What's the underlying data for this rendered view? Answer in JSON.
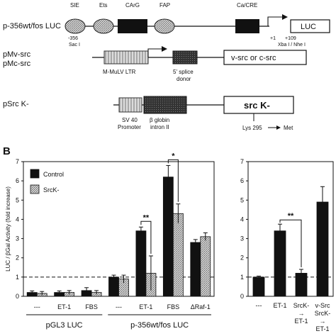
{
  "panel_a": {
    "construct1": {
      "name": "p-356wt/fos LUC",
      "elements": [
        "SIE",
        "Ets",
        "CArG",
        "FAP",
        "Ca/CRE"
      ],
      "pos_left": "-356",
      "site_left": "Sac I",
      "pos_plus1": "+1",
      "pos_plus109": "+109",
      "site_right": "Xba I / Nhe I",
      "reporter": "LUC"
    },
    "construct2": {
      "name_line1": "pMv-src",
      "name_line2": "pMc-src",
      "ltr_label": "M-MuLV LTR",
      "splice_line1": "5' splice",
      "splice_line2": "donor",
      "product": "v-src or c-src"
    },
    "construct3": {
      "name": "pSrc K-",
      "promoter_line1": "SV 40",
      "promoter_line2": "Promoter",
      "intron_label": "β globin",
      "intron_line2": "intron II",
      "product": "src K-",
      "mutation_from": "Lys 295",
      "mutation_to": "Met"
    }
  },
  "panel_b_label": "B",
  "chart_data": [
    {
      "type": "bar",
      "ylabel": "LUC / βGal Activity (fold increase)",
      "ylim": [
        0,
        7
      ],
      "yticks": [
        0,
        1,
        2,
        3,
        4,
        5,
        6,
        7
      ],
      "reference_line": 1,
      "legend": [
        "Control",
        "SrcK-"
      ],
      "legend_placement": "top-left",
      "categories": [
        "---",
        "ET-1",
        "FBS",
        "---",
        "ET-1",
        "FBS",
        "ΔRaf-1"
      ],
      "groups": [
        {
          "label": "pGL3 LUC",
          "category_count": 3
        },
        {
          "label": "p-356wt/fos LUC",
          "category_count": 4
        }
      ],
      "series": [
        {
          "name": "Control",
          "color": "#111111",
          "values": [
            0.2,
            0.2,
            0.3,
            1.0,
            3.4,
            6.2,
            2.8
          ],
          "errors": [
            0.08,
            0.08,
            0.15,
            0.1,
            0.2,
            0.6,
            0.15
          ]
        },
        {
          "name": "SrcK-",
          "color": "#9a9a9a",
          "values": [
            0.15,
            0.2,
            0.2,
            0.9,
            1.2,
            4.3,
            3.1
          ],
          "errors": [
            0.1,
            0.1,
            0.1,
            0.2,
            0.9,
            0.5,
            0.2
          ]
        }
      ],
      "significance": [
        {
          "category_index": 4,
          "label": "**"
        },
        {
          "category_index": 5,
          "label": "*"
        }
      ]
    },
    {
      "type": "bar",
      "ylim": [
        0,
        7
      ],
      "yticks": [
        0,
        1,
        2,
        3,
        4,
        5,
        6,
        7
      ],
      "reference_line": 1,
      "categories": [
        "---",
        "ET-1",
        "SrcK- → ET-1",
        "v-Src SrcK- → ET-1"
      ],
      "tick_lines": [
        [
          "---"
        ],
        [
          "ET-1"
        ],
        [
          "SrcK-",
          "→",
          "ET-1"
        ],
        [
          "v-Src",
          "SrcK-",
          "→",
          "ET-1"
        ]
      ],
      "values": [
        1.0,
        3.4,
        1.2,
        4.9
      ],
      "errors": [
        0.05,
        0.35,
        0.2,
        0.8
      ],
      "color": "#111111",
      "significance": [
        {
          "from_index": 1,
          "to_index": 2,
          "label": "**"
        }
      ]
    }
  ]
}
